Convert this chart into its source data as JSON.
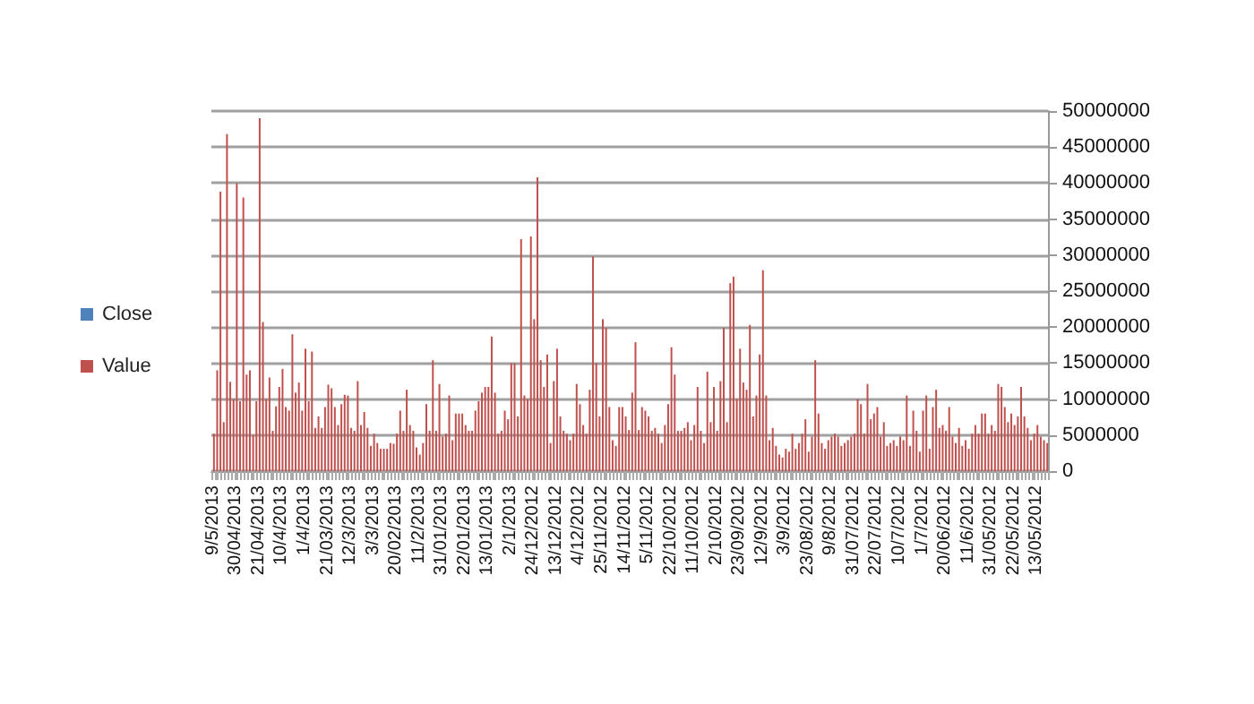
{
  "chart_data": {
    "type": "bar",
    "categories": [
      "9/5/2013",
      null,
      null,
      null,
      null,
      null,
      null,
      "30/04/2013",
      null,
      null,
      null,
      null,
      null,
      null,
      "21/04/2013",
      null,
      null,
      null,
      null,
      null,
      null,
      "10/4/2013",
      null,
      null,
      null,
      null,
      null,
      null,
      "1/4/2013",
      null,
      null,
      null,
      null,
      null,
      null,
      "21/03/2013",
      null,
      null,
      null,
      null,
      null,
      null,
      "12/3/2013",
      null,
      null,
      null,
      null,
      null,
      null,
      "3/3/2013",
      null,
      null,
      null,
      null,
      null,
      null,
      "20/02/2013",
      null,
      null,
      null,
      null,
      null,
      null,
      "11/2/2013",
      null,
      null,
      null,
      null,
      null,
      null,
      "31/01/2013",
      null,
      null,
      null,
      null,
      null,
      null,
      "22/01/2013",
      null,
      null,
      null,
      null,
      null,
      null,
      "13/01/2013",
      null,
      null,
      null,
      null,
      null,
      null,
      "2/1/2013",
      null,
      null,
      null,
      null,
      null,
      null,
      "24/12/2012",
      null,
      null,
      null,
      null,
      null,
      null,
      "13/12/2012",
      null,
      null,
      null,
      null,
      null,
      null,
      "4/12/2012",
      null,
      null,
      null,
      null,
      null,
      null,
      "25/11/2012",
      null,
      null,
      null,
      null,
      null,
      null,
      "14/11/2012",
      null,
      null,
      null,
      null,
      null,
      null,
      "5/11/2012",
      null,
      null,
      null,
      null,
      null,
      null,
      "22/10/2012",
      null,
      null,
      null,
      null,
      null,
      null,
      "11/10/2012",
      null,
      null,
      null,
      null,
      null,
      null,
      "2/10/2012",
      null,
      null,
      null,
      null,
      null,
      null,
      "23/09/2012",
      null,
      null,
      null,
      null,
      null,
      null,
      "12/9/2012",
      null,
      null,
      null,
      null,
      null,
      null,
      "3/9/2012",
      null,
      null,
      null,
      null,
      null,
      null,
      "23/08/2012",
      null,
      null,
      null,
      null,
      null,
      null,
      "9/8/2012",
      null,
      null,
      null,
      null,
      null,
      null,
      "31/07/2012",
      null,
      null,
      null,
      null,
      null,
      null,
      "22/07/2012",
      null,
      null,
      null,
      null,
      null,
      null,
      "10/7/2012",
      null,
      null,
      null,
      null,
      null,
      null,
      "1/7/2012",
      null,
      null,
      null,
      null,
      null,
      null,
      "20/06/2012",
      null,
      null,
      null,
      null,
      null,
      null,
      "11/6/2012",
      null,
      null,
      null,
      null,
      null,
      null,
      "31/05/2012",
      null,
      null,
      null,
      null,
      null,
      null,
      "22/05/2012",
      null,
      null,
      null,
      null,
      null,
      null,
      "13/05/2012",
      null,
      null,
      null
    ],
    "series": [
      {
        "name": "Close",
        "color": "#4f81bd",
        "values": [
          0,
          0,
          0,
          0,
          0,
          0,
          0,
          0,
          0,
          0,
          0,
          0,
          0,
          0,
          0,
          0,
          0,
          0,
          0,
          0,
          0,
          0,
          0,
          0,
          0,
          0,
          0,
          0,
          0,
          0,
          0,
          0,
          0,
          0,
          0,
          0,
          0,
          0,
          0,
          0,
          0,
          0,
          0,
          0,
          0,
          0,
          0,
          0,
          0,
          0,
          0,
          0,
          0,
          0,
          0,
          0,
          0,
          0,
          0,
          0,
          0,
          0,
          0,
          0,
          0,
          0,
          0,
          0,
          0,
          0,
          0,
          0,
          0,
          0,
          0,
          0,
          0,
          0,
          0,
          0,
          0,
          0,
          0,
          0,
          0,
          0,
          0,
          0,
          0,
          0,
          0,
          0,
          0,
          0,
          0,
          0,
          0,
          0,
          0,
          0,
          0,
          0,
          0,
          0,
          0,
          0,
          0,
          0,
          0,
          0,
          0,
          0,
          0,
          0,
          0,
          0,
          0,
          0,
          0,
          0,
          0,
          0,
          0,
          0,
          0,
          0,
          0,
          0,
          0,
          0,
          0,
          0,
          0,
          0,
          0,
          0,
          0,
          0,
          0,
          0,
          0,
          0,
          0,
          0,
          0,
          0,
          0,
          0,
          0,
          0,
          0,
          0,
          0,
          0,
          0,
          0,
          0,
          0,
          0,
          0,
          0,
          0,
          0,
          0,
          0,
          0,
          0,
          0,
          0,
          0,
          0,
          0,
          0,
          0,
          0,
          0,
          0,
          0,
          0,
          0,
          0,
          0,
          0,
          0,
          0,
          0,
          0,
          0,
          0,
          0,
          0,
          0,
          0,
          0,
          0,
          0,
          0,
          0,
          0,
          0,
          0,
          0,
          0,
          0,
          0,
          0,
          0,
          0,
          0,
          0,
          0,
          0,
          0,
          0,
          0,
          0,
          0,
          0,
          0,
          0,
          0,
          0,
          0,
          0,
          0,
          0,
          0,
          0,
          0,
          0,
          0,
          0,
          0,
          0,
          0,
          0,
          0,
          0,
          0,
          0,
          0,
          0,
          0,
          0,
          0,
          0,
          0,
          0,
          0,
          0,
          0,
          0,
          0,
          0,
          0,
          0
        ]
      },
      {
        "name": "Value",
        "color": "#c0504d",
        "values": [
          5200000,
          14000000,
          38800000,
          6800000,
          46800000,
          12400000,
          10000000,
          40000000,
          9700000,
          38000000,
          13400000,
          14000000,
          5000000,
          9700000,
          49000000,
          20700000,
          10000000,
          13000000,
          5600000,
          9000000,
          11700000,
          14200000,
          8900000,
          8400000,
          19000000,
          10900000,
          12300000,
          8400000,
          17000000,
          9700000,
          16600000,
          6000000,
          7600000,
          6000000,
          8900000,
          12000000,
          11500000,
          8900000,
          6400000,
          9300000,
          10600000,
          10500000,
          6000000,
          5600000,
          12500000,
          6400000,
          8200000,
          6000000,
          3500000,
          5200000,
          3900000,
          3100000,
          3100000,
          3100000,
          3900000,
          3800000,
          5200000,
          8400000,
          5600000,
          11300000,
          6400000,
          5600000,
          3300000,
          2300000,
          3900000,
          9300000,
          5600000,
          15400000,
          5600000,
          12100000,
          4800000,
          5200000,
          10500000,
          4300000,
          8000000,
          8000000,
          8000000,
          6400000,
          5600000,
          5600000,
          8400000,
          9700000,
          10900000,
          11700000,
          11700000,
          18700000,
          10900000,
          5200000,
          5600000,
          8400000,
          7200000,
          15000000,
          15000000,
          7600000,
          32200000,
          10500000,
          10000000,
          32600000,
          21100000,
          40800000,
          15400000,
          11700000,
          16200000,
          3900000,
          12500000,
          17000000,
          7600000,
          5600000,
          5200000,
          4300000,
          5200000,
          12100000,
          9300000,
          6400000,
          5200000,
          11300000,
          29800000,
          15000000,
          7600000,
          21100000,
          19900000,
          8900000,
          4300000,
          3500000,
          8900000,
          8900000,
          7600000,
          5700000,
          10900000,
          17900000,
          5700000,
          8900000,
          8400000,
          7600000,
          5600000,
          6000000,
          5200000,
          3900000,
          6400000,
          9300000,
          17200000,
          13400000,
          5600000,
          5600000,
          6000000,
          6800000,
          4300000,
          6400000,
          11700000,
          5600000,
          3900000,
          13800000,
          6800000,
          11700000,
          5600000,
          12500000,
          19900000,
          6800000,
          26100000,
          27000000,
          10000000,
          17000000,
          12300000,
          11300000,
          20300000,
          7600000,
          10500000,
          16200000,
          27900000,
          10500000,
          4300000,
          6000000,
          3500000,
          2300000,
          1900000,
          3100000,
          2700000,
          5200000,
          3100000,
          3900000,
          5200000,
          7200000,
          2700000,
          4800000,
          15400000,
          8000000,
          3900000,
          3100000,
          4300000,
          4800000,
          5200000,
          4800000,
          3500000,
          3900000,
          4300000,
          4800000,
          5200000,
          10000000,
          9300000,
          5200000,
          12100000,
          7200000,
          8000000,
          8900000,
          4800000,
          6800000,
          3500000,
          3900000,
          4300000,
          3500000,
          4800000,
          4300000,
          10500000,
          3500000,
          8400000,
          5600000,
          2700000,
          8400000,
          10500000,
          3100000,
          8900000,
          11300000,
          6000000,
          6400000,
          5600000,
          8900000,
          4800000,
          3900000,
          6000000,
          3500000,
          4300000,
          3100000,
          5200000,
          6400000,
          5200000,
          8000000,
          8000000,
          5200000,
          6400000,
          5600000,
          12100000,
          11700000,
          8900000,
          6800000,
          8000000,
          6400000,
          7600000,
          11700000,
          7600000,
          6000000,
          4300000,
          5200000,
          6400000,
          4800000,
          4300000,
          3900000
        ]
      }
    ],
    "ylim": [
      0,
      50000000
    ],
    "yticks": [
      0,
      5000000,
      10000000,
      15000000,
      20000000,
      25000000,
      30000000,
      35000000,
      40000000,
      45000000,
      50000000
    ],
    "grid": "y",
    "legend": "left"
  }
}
